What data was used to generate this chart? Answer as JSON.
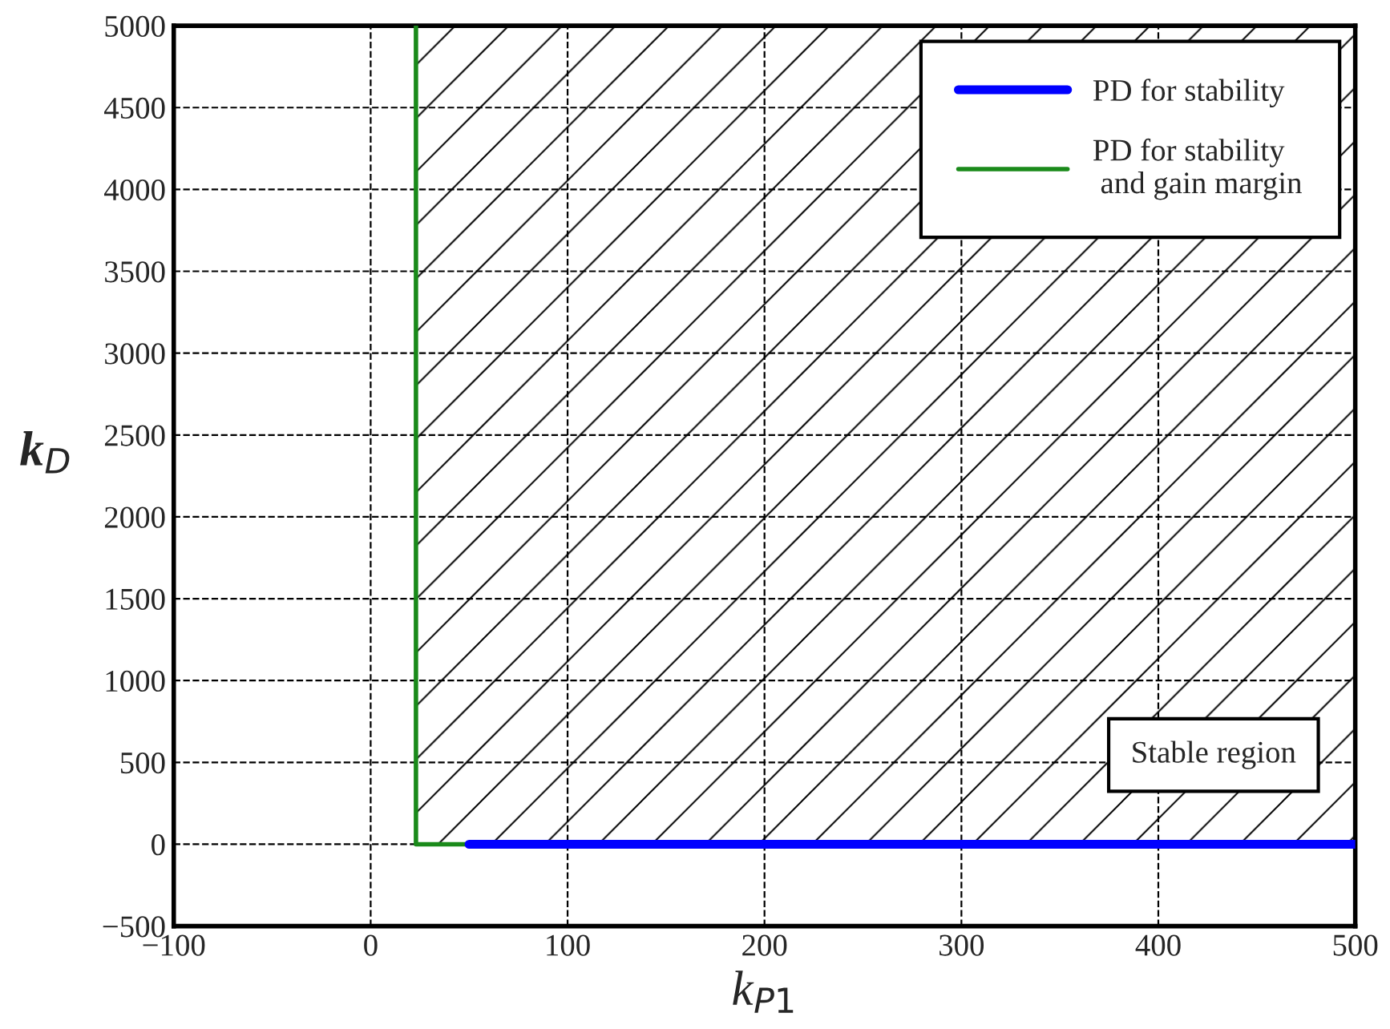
{
  "chart_data": {
    "type": "line",
    "xlabel": "k$_{P1}$",
    "ylabel": "k$_{D}$",
    "series": [
      {
        "name": "PD for stability",
        "color": "#0000ff",
        "x": [
          50,
          500
        ],
        "values": [
          0,
          0
        ]
      },
      {
        "name": "PD for stability\n and gain margin",
        "color": "#1a8a1a",
        "x": [
          23,
          23,
          50
        ],
        "values": [
          5000,
          0,
          0
        ]
      }
    ],
    "bands": [
      {
        "axis": "x",
        "from": 23,
        "to": 500,
        "label": "Stable region"
      }
    ],
    "xlim": [
      -100,
      500
    ],
    "xticks": [
      -100,
      0,
      100,
      200,
      300,
      400,
      500
    ],
    "ylim": [
      -500,
      5000
    ],
    "yticks": [
      -500,
      0,
      500,
      1000,
      1500,
      2000,
      2500,
      3000,
      3500,
      4000,
      4500,
      5000
    ],
    "grid": true,
    "legend": "top right"
  }
}
